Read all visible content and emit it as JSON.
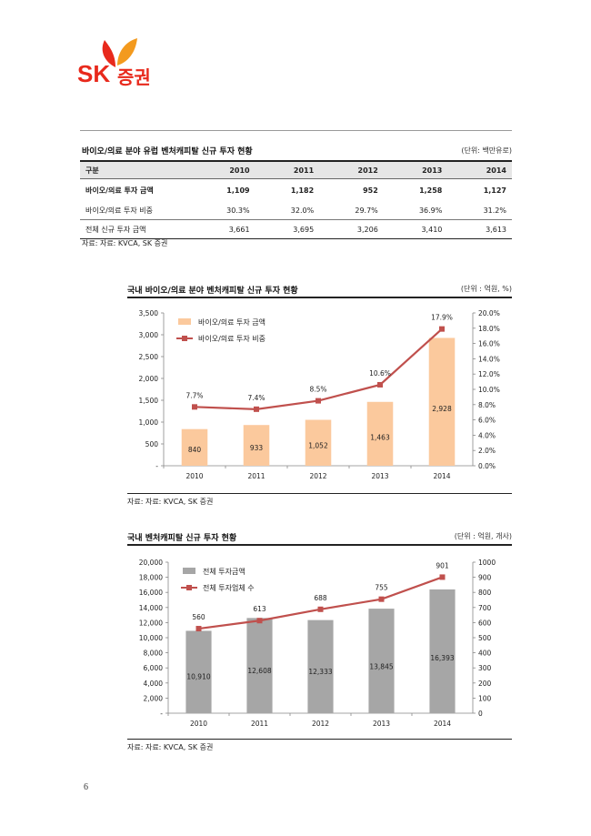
{
  "logo": {
    "brand": "SK",
    "name": "증권",
    "colors": {
      "red": "#e8291c",
      "orange": "#f39a1e"
    }
  },
  "table_section": {
    "title": "바이오/의료 분야 유럽 벤처캐피탈 신규 투자 현황",
    "unit": "(단위: 백만유로)",
    "headers": [
      "구분",
      "2010",
      "2011",
      "2012",
      "2013",
      "2014"
    ],
    "rows": [
      {
        "label": "바이오/의료 투자 금액",
        "values": [
          "1,109",
          "1,182",
          "952",
          "1,258",
          "1,127"
        ]
      },
      {
        "label": "바이오/의료 투자 비중",
        "values": [
          "30.3%",
          "32.0%",
          "29.7%",
          "36.9%",
          "31.2%"
        ]
      },
      {
        "label": "전체 신규 투자 금액",
        "values": [
          "3,661",
          "3,695",
          "3,206",
          "3,410",
          "3,613"
        ]
      }
    ],
    "source": "자료: 자료: KVCA, SK 증권"
  },
  "chart_data": [
    {
      "type": "bar",
      "title": "국내 바이오/의료 분야 벤처캐피탈 신규 투자 현황",
      "unit": "(단위 : 억원, %)",
      "categories": [
        "2010",
        "2011",
        "2012",
        "2013",
        "2014"
      ],
      "series": [
        {
          "name": "바이오/의료 투자 금액",
          "type": "bar",
          "axis": "left",
          "values": [
            840,
            933,
            1052,
            1463,
            2928
          ],
          "labels": [
            "840",
            "933",
            "1,052",
            "1,463",
            "2,928"
          ],
          "color": "#fbc99d"
        },
        {
          "name": "바이오/의료 투자 비중",
          "type": "line",
          "axis": "right",
          "values": [
            7.7,
            7.4,
            8.5,
            10.6,
            17.9
          ],
          "labels": [
            "7.7%",
            "7.4%",
            "8.5%",
            "10.6%",
            "17.9%"
          ],
          "color": "#c0504d"
        }
      ],
      "ylim": [
        0,
        3500
      ],
      "yticks": [
        "-",
        "500",
        "1,000",
        "1,500",
        "2,000",
        "2,500",
        "3,000",
        "3,500"
      ],
      "y2lim": [
        0,
        20
      ],
      "y2ticks": [
        "0.0%",
        "2.0%",
        "4.0%",
        "6.0%",
        "8.0%",
        "10.0%",
        "12.0%",
        "14.0%",
        "16.0%",
        "18.0%",
        "20.0%"
      ],
      "legend": "top-left",
      "grid": false,
      "source": "자료: 자료: KVCA, SK 증권"
    },
    {
      "type": "bar",
      "title": "국내 벤처캐피탈 신규 투자 현황",
      "unit": "(단위 : 억원, 개사)",
      "categories": [
        "2010",
        "2011",
        "2012",
        "2013",
        "2014"
      ],
      "series": [
        {
          "name": "전체 투자금액",
          "type": "bar",
          "axis": "left",
          "values": [
            10910,
            12608,
            12333,
            13845,
            16393
          ],
          "labels": [
            "10,910",
            "12,608",
            "12,333",
            "13,845",
            "16,393"
          ],
          "color": "#a6a6a6"
        },
        {
          "name": "전체 투자업체 수",
          "type": "line",
          "axis": "right",
          "values": [
            560,
            613,
            688,
            755,
            901
          ],
          "labels": [
            "560",
            "613",
            "688",
            "755",
            "901"
          ],
          "color": "#c0504d"
        }
      ],
      "ylim": [
        0,
        20000
      ],
      "yticks": [
        "-",
        "2,000",
        "4,000",
        "6,000",
        "8,000",
        "10,000",
        "12,000",
        "14,000",
        "16,000",
        "18,000",
        "20,000"
      ],
      "y2lim": [
        0,
        1000
      ],
      "y2ticks": [
        "0",
        "100",
        "200",
        "300",
        "400",
        "500",
        "600",
        "700",
        "800",
        "900",
        "1000"
      ],
      "legend": "top-left",
      "grid": false,
      "source": "자료: 자료: KVCA, SK 증권"
    }
  ],
  "page_number": "6"
}
